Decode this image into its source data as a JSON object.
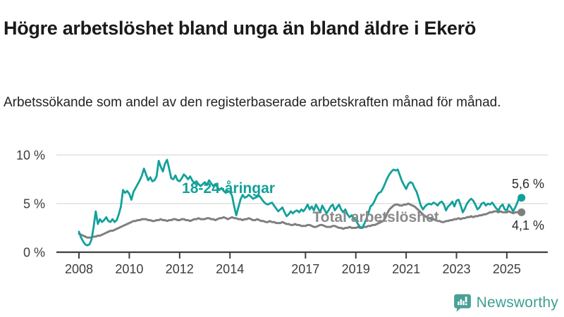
{
  "header": {
    "title": "Högre arbetslöshet bland unga än bland äldre i Ekerö",
    "subtitle": "Arbetssökande som andel av den registerbaserade arbetskraften månad för månad."
  },
  "branding": {
    "logo_text": "Newsworthy",
    "logo_color": "#4aa096",
    "text_color": "#3d9f92",
    "logo_icon": "speech-bubble-bar-chart-icon"
  },
  "chart_data": {
    "type": "line",
    "title": "Högre arbetslöshet bland unga än bland äldre i Ekerö",
    "subtitle": "Arbetssökande som andel av den registerbaserade arbetskraften månad för månad.",
    "unit": "%",
    "interval": "monthly",
    "x_start": "2008-01",
    "x_end": "2025-08",
    "ylim": [
      0,
      10
    ],
    "grid": "horizontal",
    "legend_position": "inline-labels",
    "yticks": [
      {
        "label": "0 %",
        "value": 0
      },
      {
        "label": "5 %",
        "value": 5
      },
      {
        "label": "10 %",
        "value": 10
      }
    ],
    "xticks": [
      2008,
      2010,
      2012,
      2014,
      2017,
      2019,
      2021,
      2023,
      2025
    ],
    "series": [
      {
        "name": "18-24-åringar",
        "color": "#12a19a",
        "end_label": "5,6 %",
        "final_value": 5.6,
        "values": [
          2.1,
          1.5,
          1.1,
          0.8,
          0.7,
          0.8,
          1.3,
          2.6,
          4.2,
          2.9,
          3.4,
          3.1,
          3.3,
          3.6,
          3.2,
          3.1,
          3.4,
          3.1,
          3.3,
          3.9,
          4.7,
          6.4,
          6.1,
          6.3,
          6.0,
          5.4,
          6.2,
          6.6,
          7.0,
          7.4,
          7.9,
          8.6,
          8.0,
          7.4,
          7.7,
          7.3,
          7.4,
          7.8,
          9.4,
          8.8,
          8.3,
          9.1,
          9.5,
          8.6,
          7.6,
          7.5,
          7.9,
          7.4,
          7.3,
          7.6,
          8.0,
          7.8,
          7.5,
          7.8,
          7.4,
          7.1,
          7.3,
          7.0,
          6.8,
          7.0,
          7.2,
          6.9,
          7.4,
          7.1,
          6.8,
          7.0,
          6.7,
          6.4,
          6.6,
          6.3,
          6.1,
          6.3,
          6.2,
          5.8,
          4.7,
          3.8,
          4.6,
          5.4,
          5.9,
          5.6,
          5.7,
          5.9,
          5.7,
          5.5,
          5.6,
          5.7,
          5.8,
          5.5,
          5.2,
          5.0,
          4.9,
          5.0,
          5.1,
          4.8,
          4.5,
          4.2,
          4.4,
          4.6,
          4.1,
          3.7,
          3.9,
          4.2,
          4.0,
          4.2,
          4.3,
          4.1,
          4.4,
          4.2,
          4.5,
          4.9,
          4.4,
          4.7,
          4.3,
          4.9,
          4.5,
          4.1,
          4.8,
          4.4,
          4.0,
          4.3,
          4.7,
          4.9,
          4.3,
          4.6,
          4.9,
          4.4,
          4.1,
          4.4,
          3.9,
          3.6,
          3.8,
          3.5,
          3.3,
          2.9,
          2.6,
          2.5,
          2.9,
          3.4,
          4.0,
          4.7,
          4.9,
          5.3,
          5.8,
          6.1,
          6.2,
          6.6,
          7.1,
          7.6,
          8.0,
          8.3,
          8.5,
          8.4,
          8.5,
          7.9,
          7.3,
          6.9,
          6.5,
          7.0,
          7.2,
          7.1,
          6.6,
          6.2,
          5.5,
          4.8,
          4.4,
          4.7,
          4.9,
          5.0,
          4.9,
          5.1,
          5.0,
          4.8,
          5.1,
          5.2,
          4.9,
          4.3,
          4.7,
          4.9,
          5.2,
          4.7,
          5.3,
          5.4,
          4.8,
          4.1,
          4.5,
          5.0,
          5.3,
          5.5,
          5.3,
          4.9,
          4.4,
          4.6,
          5.0,
          5.1,
          4.8,
          5.0,
          4.9,
          5.1,
          4.8,
          4.5,
          4.3,
          4.7,
          4.9,
          4.4,
          4.3,
          4.9,
          4.6,
          4.2,
          4.6,
          5.1,
          5.7,
          5.6
        ]
      },
      {
        "name": "Total arbetslöshet",
        "color": "#7f7f7f",
        "end_label": "4,1 %",
        "final_value": 4.1,
        "values": [
          1.9,
          1.8,
          1.7,
          1.6,
          1.5,
          1.5,
          1.5,
          1.6,
          1.6,
          1.7,
          1.7,
          1.8,
          1.9,
          2.0,
          2.1,
          2.2,
          2.2,
          2.3,
          2.4,
          2.5,
          2.6,
          2.7,
          2.8,
          2.9,
          3.0,
          3.1,
          3.2,
          3.2,
          3.3,
          3.3,
          3.4,
          3.4,
          3.4,
          3.3,
          3.3,
          3.2,
          3.2,
          3.3,
          3.3,
          3.4,
          3.3,
          3.3,
          3.2,
          3.3,
          3.3,
          3.4,
          3.4,
          3.3,
          3.3,
          3.4,
          3.4,
          3.3,
          3.3,
          3.2,
          3.3,
          3.4,
          3.4,
          3.5,
          3.4,
          3.4,
          3.4,
          3.5,
          3.5,
          3.4,
          3.4,
          3.3,
          3.4,
          3.5,
          3.5,
          3.6,
          3.5,
          3.4,
          3.5,
          3.6,
          3.5,
          3.5,
          3.4,
          3.4,
          3.3,
          3.4,
          3.4,
          3.5,
          3.4,
          3.3,
          3.3,
          3.4,
          3.3,
          3.2,
          3.2,
          3.1,
          3.1,
          3.2,
          3.1,
          3.1,
          3.0,
          3.0,
          3.0,
          3.1,
          3.0,
          2.9,
          2.9,
          2.8,
          2.8,
          2.9,
          2.8,
          2.8,
          2.7,
          2.7,
          2.7,
          2.8,
          2.8,
          2.7,
          2.6,
          2.6,
          2.7,
          2.8,
          2.8,
          2.7,
          2.6,
          2.6,
          2.6,
          2.7,
          2.7,
          2.6,
          2.5,
          2.5,
          2.4,
          2.5,
          2.5,
          2.6,
          2.5,
          2.5,
          2.5,
          2.6,
          2.5,
          2.5,
          2.6,
          2.6,
          2.7,
          2.7,
          2.8,
          2.8,
          2.9,
          3.0,
          3.1,
          3.2,
          3.5,
          4.0,
          4.4,
          4.6,
          4.8,
          4.9,
          4.9,
          4.8,
          4.8,
          4.9,
          4.9,
          5.0,
          4.9,
          4.8,
          4.7,
          4.5,
          4.3,
          4.1,
          3.9,
          3.7,
          3.6,
          3.5,
          3.4,
          3.4,
          3.3,
          3.2,
          3.2,
          3.1,
          3.1,
          3.2,
          3.2,
          3.3,
          3.3,
          3.4,
          3.4,
          3.5,
          3.4,
          3.5,
          3.5,
          3.6,
          3.6,
          3.7,
          3.6,
          3.7,
          3.7,
          3.8,
          3.8,
          3.9,
          3.9,
          4.0,
          4.1,
          4.1,
          4.2,
          4.2,
          4.1,
          4.2,
          4.1,
          4.1,
          4.1,
          4.2,
          4.1,
          4.0,
          4.1,
          4.1,
          4.2,
          4.1
        ]
      }
    ]
  }
}
